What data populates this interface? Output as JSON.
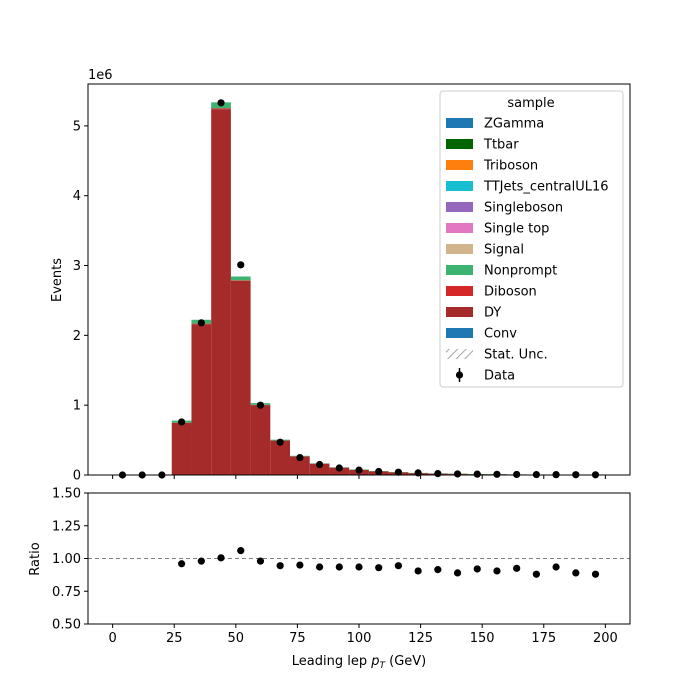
{
  "chart_data": {
    "type": "bar",
    "subtype": "stacked-histogram-with-ratio",
    "xlabel_main": "Leading lep ",
    "xlabel_sub": "T",
    "xlabel_tail": " (GeV)",
    "ylabel": "Events",
    "ylabel_ratio": "Ratio",
    "offset_label": "1e6",
    "legend_title": "sample",
    "legend_position": "top-right",
    "xlim": [
      -10,
      210
    ],
    "ylim": [
      0,
      5.6
    ],
    "ylim_ratio": [
      0.5,
      1.5
    ],
    "y_scale_factor": 1000000,
    "xticks": [
      0,
      25,
      50,
      75,
      100,
      125,
      150,
      175,
      200
    ],
    "xtick_labels": [
      "0",
      "25",
      "50",
      "75",
      "100",
      "125",
      "150",
      "175",
      "200"
    ],
    "yticks": [
      0,
      1,
      2,
      3,
      4,
      5
    ],
    "ytick_labels": [
      "0",
      "1",
      "2",
      "3",
      "4",
      "5"
    ],
    "yticks_ratio": [
      0.5,
      0.75,
      1.0,
      1.25,
      1.5
    ],
    "ytick_labels_ratio": [
      "0.50",
      "0.75",
      "1.00",
      "1.25",
      "1.50"
    ],
    "ratio_reference": 1.0,
    "bin_edges": [
      0,
      8,
      16,
      24,
      32,
      40,
      48,
      56,
      64,
      72,
      80,
      88,
      96,
      104,
      112,
      120,
      128,
      136,
      144,
      152,
      160,
      168,
      176,
      184,
      192,
      200
    ],
    "legend": [
      {
        "name": "ZGamma",
        "color": "#1f77b4",
        "kind": "patch"
      },
      {
        "name": "Ttbar",
        "color": "#006400",
        "kind": "patch"
      },
      {
        "name": "Triboson",
        "color": "#ff7f0e",
        "kind": "patch"
      },
      {
        "name": "TTJets_centralUL16",
        "color": "#17becf",
        "kind": "patch"
      },
      {
        "name": "Singleboson",
        "color": "#9467bd",
        "kind": "patch"
      },
      {
        "name": "Single top",
        "color": "#e377c2",
        "kind": "patch"
      },
      {
        "name": "Signal",
        "color": "#d2b48c",
        "kind": "patch"
      },
      {
        "name": "Nonprompt",
        "color": "#3cb371",
        "kind": "patch"
      },
      {
        "name": "Diboson",
        "color": "#d62728",
        "kind": "patch"
      },
      {
        "name": "DY",
        "color": "#a52a2a",
        "kind": "patch"
      },
      {
        "name": "Conv",
        "color": "#1f77b4",
        "kind": "patch"
      },
      {
        "name": "Stat. Unc.",
        "color": "#888888",
        "kind": "hatch"
      },
      {
        "name": "Data",
        "color": "#000000",
        "kind": "errorbar"
      }
    ],
    "stack": [
      {
        "name": "DY",
        "color": "#a52a2a",
        "values": [
          0,
          0,
          0,
          0.745,
          2.16,
          5.24,
          2.78,
          1.0,
          0.49,
          0.265,
          0.16,
          0.105,
          0.075,
          0.052,
          0.038,
          0.028,
          0.021,
          0.016,
          0.012,
          0.009,
          0.007,
          0.005,
          0.004,
          0.003,
          0.003
        ]
      },
      {
        "name": "Diboson",
        "color": "#d62728",
        "values": [
          0,
          0,
          0,
          0.004,
          0.008,
          0.012,
          0.008,
          0.004,
          0.003,
          0.002,
          0.002,
          0.001,
          0.001,
          0.001,
          0.001,
          0.001,
          0.001,
          0.001,
          0.001,
          0.001,
          0.001,
          0.0,
          0.0,
          0.0,
          0.0
        ]
      },
      {
        "name": "Nonprompt",
        "color": "#3cb371",
        "values": [
          0,
          0,
          0,
          0.03,
          0.055,
          0.085,
          0.055,
          0.025,
          0.013,
          0.008,
          0.005,
          0.004,
          0.003,
          0.002,
          0.002,
          0.001,
          0.001,
          0.001,
          0.001,
          0.001,
          0.0,
          0.0,
          0.0,
          0.0,
          0.0
        ]
      }
    ],
    "data": {
      "name": "Data",
      "x": [
        4,
        12,
        20,
        28,
        36,
        44,
        52,
        60,
        68,
        76,
        84,
        92,
        100,
        108,
        116,
        124,
        132,
        140,
        148,
        156,
        164,
        172,
        180,
        188,
        196
      ],
      "values": [
        0,
        0,
        0,
        0.76,
        2.18,
        5.33,
        3.01,
        1.0,
        0.47,
        0.25,
        0.15,
        0.1,
        0.07,
        0.05,
        0.04,
        0.03,
        0.02,
        0.015,
        0.012,
        0.01,
        0.008,
        0.006,
        0.005,
        0.004,
        0.003
      ]
    },
    "ratio": {
      "x": [
        28,
        36,
        44,
        52,
        60,
        68,
        76,
        84,
        92,
        100,
        108,
        116,
        124,
        132,
        140,
        148,
        156,
        164,
        172,
        180,
        188,
        196
      ],
      "values": [
        0.96,
        0.98,
        1.005,
        1.06,
        0.98,
        0.945,
        0.95,
        0.935,
        0.935,
        0.935,
        0.93,
        0.945,
        0.905,
        0.915,
        0.89,
        0.92,
        0.905,
        0.925,
        0.88,
        0.935,
        0.89,
        0.88
      ]
    }
  }
}
